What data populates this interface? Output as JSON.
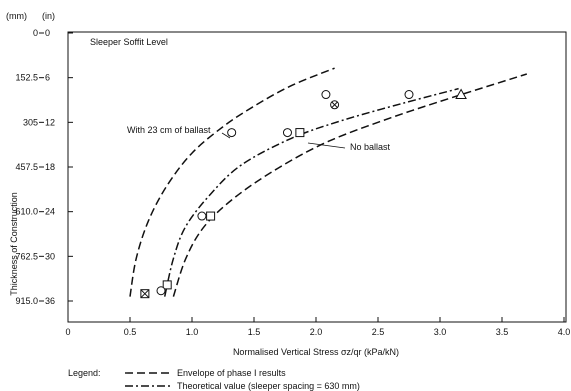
{
  "chart_data": {
    "type": "line",
    "title": "",
    "xlabel": "Normalised Vertical Stress σz/qr (kPa/kN)",
    "ylabel": "Thickness of Construction",
    "y_unit_mm": "(mm)",
    "y_unit_in": "(in)",
    "xlim": [
      0,
      4.0
    ],
    "ylim_mm": [
      0,
      915
    ],
    "y_inverted": true,
    "grid": false,
    "x_ticks": [
      "0",
      "0.5",
      "1.0",
      "1.5",
      "2.0",
      "2.5",
      "3.0",
      "3.5",
      "4.0"
    ],
    "x_tick_values": [
      0,
      0.5,
      1.0,
      1.5,
      2.0,
      2.5,
      3.0,
      3.5,
      4.0
    ],
    "y_ticks_mm": [
      "0",
      "152.5",
      "305",
      "457.5",
      "610.0",
      "762.5",
      "915.0"
    ],
    "y_tick_values": [
      0,
      152.5,
      305,
      457.5,
      610,
      762.5,
      915
    ],
    "y_ticks_in": [
      "0",
      "6",
      "12",
      "18",
      "24",
      "30",
      "36"
    ],
    "annotations": {
      "soffit": "Sleeper Soffit Level",
      "with_ballast": "With 23 cm of ballast",
      "no_ballast": "No ballast"
    },
    "series": [
      {
        "style": "dashed",
        "points": [
          [
            0.5,
            900
          ],
          [
            0.55,
            770
          ],
          [
            0.65,
            640
          ],
          [
            0.8,
            520
          ],
          [
            1.0,
            410
          ],
          [
            1.25,
            320
          ],
          [
            1.5,
            250
          ],
          [
            1.8,
            180
          ],
          [
            2.15,
            120
          ]
        ]
      },
      {
        "style": "dashdot",
        "points": [
          [
            0.78,
            900
          ],
          [
            0.85,
            770
          ],
          [
            0.95,
            660
          ],
          [
            1.15,
            550
          ],
          [
            1.4,
            450
          ],
          [
            1.8,
            360
          ],
          [
            2.2,
            300
          ],
          [
            2.7,
            240
          ],
          [
            3.15,
            190
          ]
        ]
      },
      {
        "style": "dashed",
        "points": [
          [
            0.85,
            900
          ],
          [
            0.95,
            770
          ],
          [
            1.1,
            660
          ],
          [
            1.35,
            560
          ],
          [
            1.7,
            460
          ],
          [
            2.1,
            370
          ],
          [
            2.6,
            290
          ],
          [
            3.1,
            220
          ],
          [
            3.7,
            140
          ]
        ]
      }
    ],
    "markers": [
      {
        "shape": "circle",
        "x": 1.32,
        "y": 340
      },
      {
        "shape": "circle",
        "x": 2.08,
        "y": 210
      },
      {
        "shape": "circle-x",
        "x": 2.15,
        "y": 245
      },
      {
        "shape": "circle",
        "x": 2.75,
        "y": 210
      },
      {
        "shape": "triangle",
        "x": 3.17,
        "y": 210
      },
      {
        "shape": "circle",
        "x": 1.77,
        "y": 340
      },
      {
        "shape": "square",
        "x": 1.87,
        "y": 340
      },
      {
        "shape": "circle",
        "x": 1.08,
        "y": 625
      },
      {
        "shape": "square",
        "x": 1.15,
        "y": 625
      },
      {
        "shape": "square",
        "x": 0.8,
        "y": 860
      },
      {
        "shape": "circle",
        "x": 0.75,
        "y": 880
      },
      {
        "shape": "square-x",
        "x": 0.62,
        "y": 890
      }
    ],
    "legend": {
      "title": "Legend:",
      "entries": [
        {
          "style": "dashed",
          "label": "Envelope of phase I results"
        },
        {
          "style": "dashdot",
          "label": "Theoretical value (sleeper spacing = 630 mm)"
        }
      ]
    }
  }
}
